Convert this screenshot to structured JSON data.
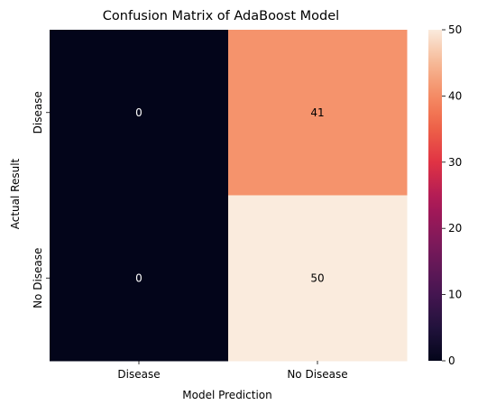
{
  "chart_data": {
    "type": "heatmap",
    "title": "Confusion Matrix of AdaBoost Model",
    "xlabel": "Model Prediction",
    "ylabel": "Actual Result",
    "x_categories": [
      "Disease",
      "No Disease"
    ],
    "y_categories": [
      "Disease",
      "No Disease"
    ],
    "values": [
      [
        0,
        41
      ],
      [
        0,
        50
      ]
    ],
    "colorbar": {
      "range": [
        0,
        50
      ],
      "ticks": [
        0,
        10,
        20,
        30,
        40,
        50
      ],
      "colormap": "rocket"
    }
  }
}
